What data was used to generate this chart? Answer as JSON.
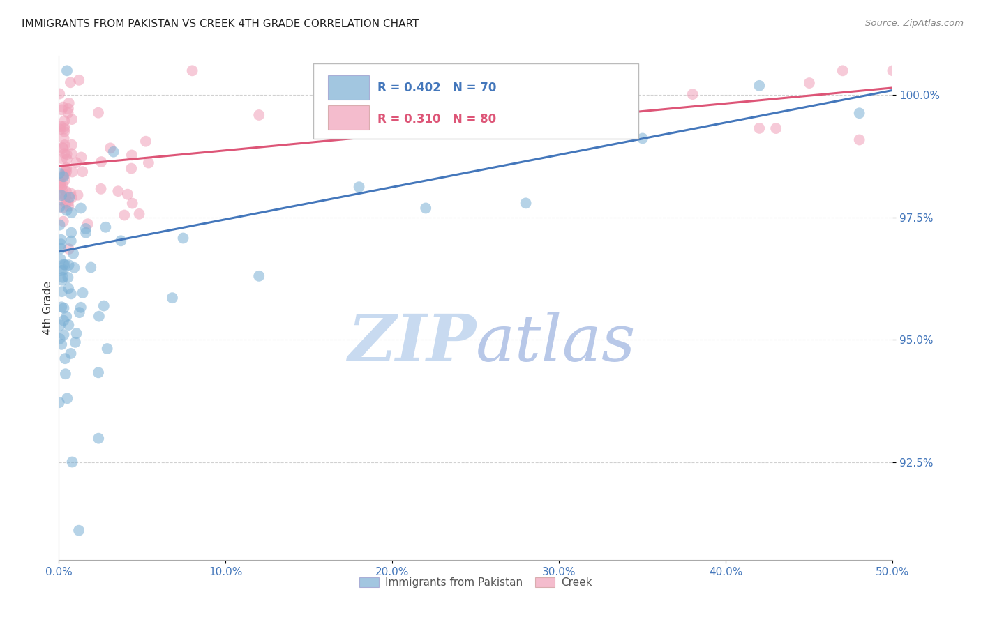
{
  "title": "IMMIGRANTS FROM PAKISTAN VS CREEK 4TH GRADE CORRELATION CHART",
  "source": "Source: ZipAtlas.com",
  "ylabel": "4th Grade",
  "legend_blue_label": "Immigrants from Pakistan",
  "legend_pink_label": "Creek",
  "legend_blue_R": "0.402",
  "legend_blue_N": "70",
  "legend_pink_R": "0.310",
  "legend_pink_N": "80",
  "title_color": "#222222",
  "title_fontsize": 11,
  "blue_color": "#7bafd4",
  "pink_color": "#f0a0b8",
  "blue_line_color": "#4477bb",
  "pink_line_color": "#dd5577",
  "watermark_zip_color": "#c8daf0",
  "watermark_atlas_color": "#b8c8e8",
  "background_color": "#ffffff",
  "grid_color": "#cccccc",
  "axis_tick_color": "#4477bb",
  "ylabel_color": "#333333",
  "blue_line_x0": 0.0,
  "blue_line_y0": 96.8,
  "blue_line_x1": 0.5,
  "blue_line_y1": 100.1,
  "pink_line_x0": 0.0,
  "pink_line_y0": 98.55,
  "pink_line_x1": 0.5,
  "pink_line_y1": 100.15,
  "ylim_min": 90.5,
  "ylim_max": 100.8,
  "xlim_min": 0.0,
  "xlim_max": 0.5,
  "ytick_values": [
    92.5,
    95.0,
    97.5,
    100.0
  ],
  "ytick_labels": [
    "92.5%",
    "95.0%",
    "97.5%",
    "100.0%"
  ],
  "xtick_values": [
    0.0,
    0.1,
    0.2,
    0.3,
    0.4,
    0.5
  ],
  "xtick_labels": [
    "0.0%",
    "10.0%",
    "20.0%",
    "30.0%",
    "40.0%",
    "50.0%"
  ],
  "blue_seed": 42,
  "pink_seed": 123,
  "n_blue": 70,
  "n_pink": 80
}
